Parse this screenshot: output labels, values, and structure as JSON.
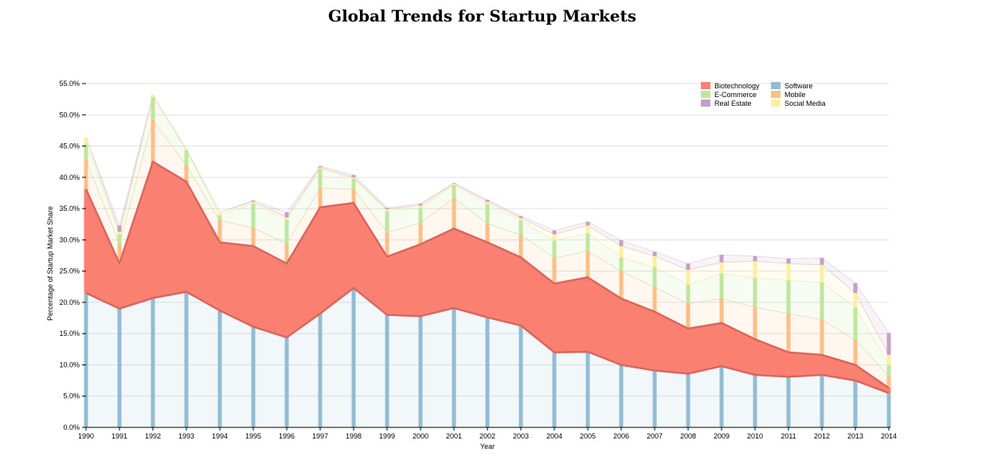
{
  "chart_data": {
    "type": "area",
    "title": "Global Trends for Startup Markets",
    "xlabel": "Year",
    "ylabel": "Percentage of Startup Market Share",
    "ylim": [
      0,
      55
    ],
    "yticks": [
      "0.0%",
      "5.0%",
      "10.0%",
      "15.0%",
      "20.0%",
      "25.0%",
      "30.0%",
      "35.0%",
      "40.0%",
      "45.0%",
      "50.0%",
      "55.0%"
    ],
    "grid": true,
    "stacked": true,
    "legend_position": "top-right",
    "x": [
      "1990",
      "1991",
      "1992",
      "1993",
      "1994",
      "1995",
      "1996",
      "1997",
      "1998",
      "1999",
      "2000",
      "2001",
      "2002",
      "2003",
      "2004",
      "2005",
      "2006",
      "2007",
      "2008",
      "2009",
      "2010",
      "2011",
      "2012",
      "2013",
      "2014"
    ],
    "series": [
      {
        "name": "Software",
        "color": "#92bcd4",
        "values": [
          21.5,
          19.0,
          20.7,
          21.7,
          18.7,
          16.1,
          14.4,
          18.2,
          22.3,
          18.0,
          17.8,
          19.1,
          17.6,
          16.3,
          12.0,
          12.1,
          10.0,
          9.1,
          8.6,
          9.8,
          8.4,
          8.1,
          8.4,
          7.5,
          5.5
        ]
      },
      {
        "name": "Biotechnology",
        "color": "#fa8072",
        "values": [
          16.6,
          7.2,
          21.8,
          17.6,
          10.9,
          12.9,
          11.8,
          17.0,
          13.6,
          9.3,
          11.5,
          12.7,
          12.0,
          10.9,
          11.0,
          11.9,
          10.6,
          9.4,
          7.2,
          6.9,
          5.7,
          3.9,
          3.2,
          2.5,
          0.8
        ]
      },
      {
        "name": "Mobile",
        "color": "#fbbf85",
        "values": [
          4.7,
          3.2,
          6.7,
          2.6,
          3.5,
          2.9,
          3.2,
          3.1,
          2.2,
          3.9,
          3.4,
          4.9,
          3.0,
          3.6,
          4.1,
          4.2,
          4.4,
          3.9,
          4.0,
          3.9,
          5.1,
          6.2,
          5.6,
          4.0,
          1.9
        ]
      },
      {
        "name": "E-Commerce",
        "color": "#bfe69e",
        "values": [
          2.5,
          1.5,
          3.6,
          2.4,
          0.8,
          3.9,
          3.8,
          3.1,
          1.7,
          3.4,
          2.4,
          2.1,
          3.1,
          2.3,
          2.8,
          2.8,
          2.2,
          3.2,
          3.0,
          4.0,
          4.7,
          5.3,
          6.0,
          5.2,
          1.8
        ]
      },
      {
        "name": "Social Media",
        "color": "#ffef9e",
        "values": [
          1.1,
          0.4,
          0.4,
          0.2,
          0.5,
          0.3,
          0.4,
          0.2,
          0.2,
          0.3,
          0.4,
          0.2,
          0.4,
          0.4,
          1.0,
          1.3,
          1.8,
          1.8,
          2.4,
          1.8,
          2.7,
          2.7,
          2.8,
          2.3,
          1.6
        ]
      },
      {
        "name": "Real Estate",
        "color": "#c79ec7",
        "values": [
          0.0,
          1.0,
          0.0,
          0.0,
          0.0,
          0.2,
          0.8,
          0.2,
          0.4,
          0.2,
          0.3,
          0.1,
          0.3,
          0.3,
          0.6,
          0.6,
          0.9,
          0.7,
          1.0,
          1.2,
          0.8,
          0.8,
          1.1,
          1.6,
          3.5
        ]
      }
    ],
    "legend_layout": [
      [
        "Biotechnology",
        "Software"
      ],
      [
        "E-Commerce",
        "Mobile"
      ],
      [
        "Real Estate",
        "Social Media"
      ]
    ]
  }
}
